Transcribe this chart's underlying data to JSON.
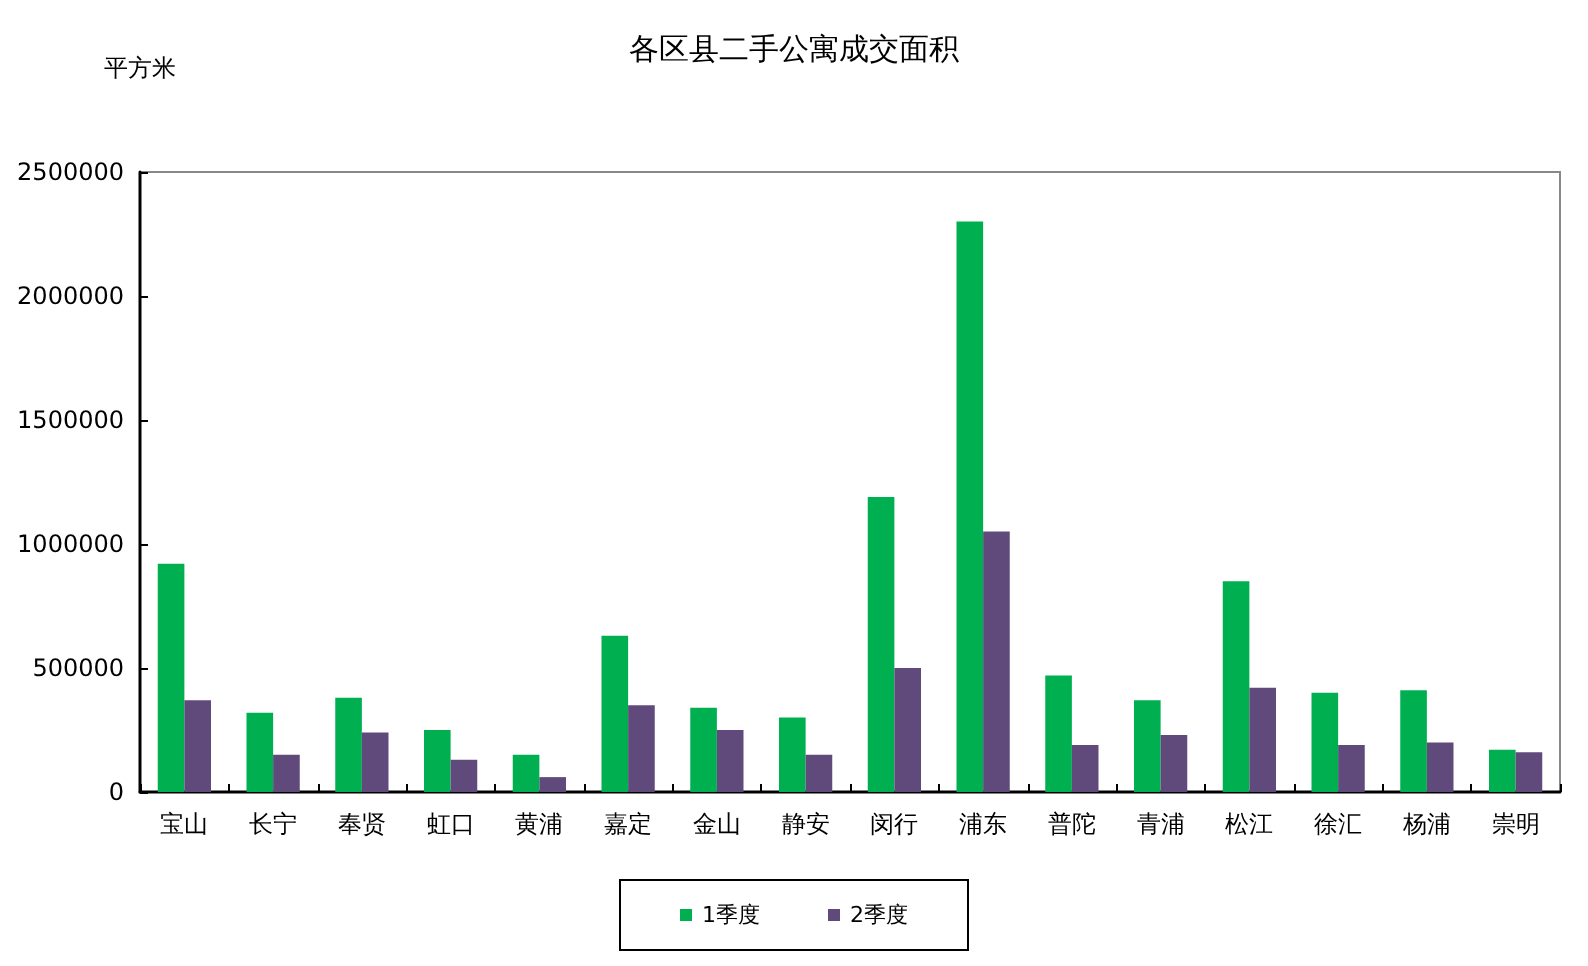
{
  "chart_data": {
    "type": "bar",
    "title": "各区县二手公寓成交面积",
    "ylabel": "平方米",
    "categories": [
      "宝山",
      "长宁",
      "奉贤",
      "虹口",
      "黄浦",
      "嘉定",
      "金山",
      "静安",
      "闵行",
      "浦东",
      "普陀",
      "青浦",
      "松江",
      "徐汇",
      "杨浦",
      "崇明"
    ],
    "series": [
      {
        "name": "1季度",
        "color": "#00b050",
        "values": [
          920000,
          320000,
          380000,
          250000,
          150000,
          630000,
          340000,
          300000,
          1190000,
          2300000,
          470000,
          370000,
          850000,
          400000,
          410000,
          170000
        ]
      },
      {
        "name": "2季度",
        "color": "#604a7b",
        "values": [
          370000,
          150000,
          240000,
          130000,
          60000,
          350000,
          250000,
          150000,
          500000,
          1050000,
          190000,
          230000,
          420000,
          190000,
          200000,
          160000
        ]
      }
    ],
    "ylim": [
      0,
      2500000
    ],
    "yticks": [
      0,
      500000,
      1000000,
      1500000,
      2000000,
      2500000
    ],
    "grid": false,
    "legend": "bottom"
  }
}
